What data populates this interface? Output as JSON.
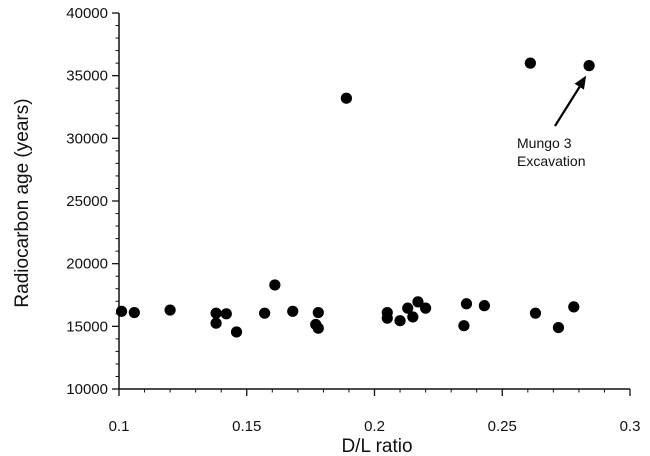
{
  "chart_data": {
    "type": "scatter",
    "title": "",
    "xlabel": "D/L ratio",
    "ylabel": "Radiocarbon age (years)",
    "xlim": [
      0.1,
      0.3
    ],
    "ylim": [
      10000,
      40000
    ],
    "x_ticks": [
      0.1,
      0.15,
      0.2,
      0.25,
      0.3
    ],
    "x_tick_labels": [
      "0.1",
      "0.15",
      "0.2",
      "0.25",
      "0.3"
    ],
    "y_ticks": [
      10000,
      15000,
      20000,
      25000,
      30000,
      35000,
      40000
    ],
    "y_tick_labels": [
      "10000",
      "15000",
      "20000",
      "25000",
      "30000",
      "35000",
      "40000"
    ],
    "grid": false,
    "series": [
      {
        "x": [
          0.101,
          0.106,
          0.12,
          0.138,
          0.138,
          0.142,
          0.146,
          0.157,
          0.161,
          0.168,
          0.177,
          0.178,
          0.178,
          0.189,
          0.205,
          0.205,
          0.21,
          0.213,
          0.215,
          0.217,
          0.22,
          0.235,
          0.236,
          0.243,
          0.261,
          0.263,
          0.272,
          0.278,
          0.284
        ],
        "y": [
          16200,
          16100,
          16300,
          16050,
          15250,
          16000,
          14550,
          16050,
          18300,
          16200,
          15150,
          16100,
          14850,
          33200,
          16100,
          15650,
          15450,
          16450,
          15750,
          16950,
          16450,
          15050,
          16800,
          16650,
          36000,
          16050,
          14900,
          16550,
          35800
        ]
      }
    ],
    "annotations": [
      {
        "lines": [
          "Mungo 3",
          "Excavation"
        ],
        "points_to": {
          "x": 0.284,
          "y": 35800
        }
      }
    ]
  }
}
